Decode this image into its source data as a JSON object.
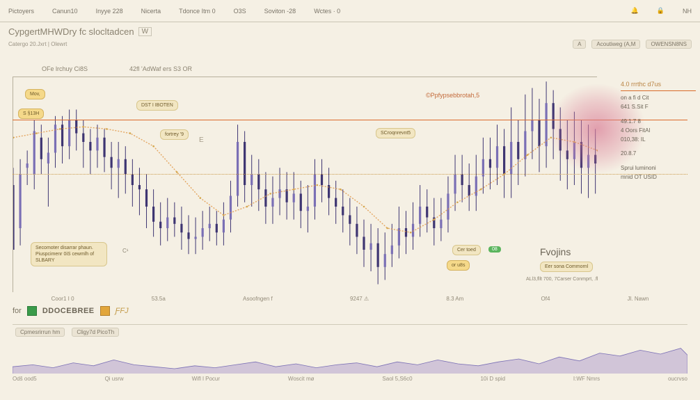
{
  "topbar": {
    "tabs": [
      "Pictoyers",
      "Canun10",
      "Inyye 228",
      "Nicerta",
      "Tdonce Itm 0",
      "O3S",
      "Soviton -28",
      "Wctes · 0"
    ],
    "right": "NH"
  },
  "title": {
    "main": "CypgertMHWDry fc slocltadcen",
    "tf": "W"
  },
  "subbar": {
    "left": "Catergo 20.Jxrt | Olewrt",
    "btn1": "Acoutiweg (A,M",
    "btn2": "OWENSN8NS",
    "tiny": "A"
  },
  "legend": {
    "a": "OFe lrchuy Ci8S",
    "b": "42fl 'AdWaf ers S3 OR"
  },
  "annotations": {
    "mov": "Mov,",
    "s": "S §13H",
    "dst": "DST I IBOTEN",
    "fort": "fortrey '9",
    "e": "E",
    "scrg": "SCroqnrevnt5",
    "pp": "©Ppfypsebbrotah,5",
    "note": "Secomoter disarrar\nphaun. Piuspcimenr\n0iS cewmlh of SLBARY",
    "c": "C¹",
    "cer": "Cer  toed",
    "or": "or  u8s",
    "fv": "Fvojins",
    "fvsub": "Eer sona Commornl",
    "fvnum": "ALl3,fllt  700, 7Carser  Conmprt, .fl"
  },
  "green": "08",
  "right_panel": {
    "hdr": "4.0 rrrthc d7us",
    "lines": [
      "on a fi  d Cit",
      "641  S.Sit  F",
      "49.1.7 8",
      "4 Oors  FitAl",
      "010,38: IL",
      "20.8.7",
      "Sprui luminoni",
      "mnid  OT USID"
    ]
  },
  "colors": {
    "bg": "#f5f0e4",
    "candle": "#3e3572",
    "candle2": "#7a6fb5",
    "line": "#e09440",
    "line2": "#d4a84e",
    "hline": "#db6a2a",
    "ellipse": "#d97c96",
    "area": "#b9a9d0",
    "grid": "#cbc5b2"
  },
  "chart": {
    "candles": [
      [
        0.0,
        0.5,
        0.2,
        0.58,
        0.42
      ],
      [
        0.012,
        0.3,
        0.55,
        0.62,
        0.22
      ],
      [
        0.024,
        0.58,
        0.6,
        0.66,
        0.5
      ],
      [
        0.036,
        0.55,
        0.75,
        0.8,
        0.48
      ],
      [
        0.048,
        0.72,
        0.62,
        0.78,
        0.55
      ],
      [
        0.06,
        0.6,
        0.65,
        0.72,
        0.4
      ],
      [
        0.072,
        0.65,
        0.78,
        0.82,
        0.58
      ],
      [
        0.084,
        0.78,
        0.68,
        0.82,
        0.6
      ],
      [
        0.096,
        0.68,
        0.8,
        0.85,
        0.62
      ],
      [
        0.108,
        0.8,
        0.74,
        0.85,
        0.66
      ],
      [
        0.12,
        0.74,
        0.7,
        0.8,
        0.58
      ],
      [
        0.132,
        0.7,
        0.66,
        0.76,
        0.55
      ],
      [
        0.144,
        0.66,
        0.72,
        0.78,
        0.58
      ],
      [
        0.156,
        0.72,
        0.63,
        0.76,
        0.56
      ],
      [
        0.168,
        0.63,
        0.58,
        0.7,
        0.48
      ],
      [
        0.18,
        0.58,
        0.62,
        0.7,
        0.44
      ],
      [
        0.192,
        0.62,
        0.55,
        0.68,
        0.46
      ],
      [
        0.204,
        0.55,
        0.5,
        0.62,
        0.4
      ],
      [
        0.216,
        0.5,
        0.48,
        0.58,
        0.36
      ],
      [
        0.228,
        0.48,
        0.4,
        0.55,
        0.3
      ],
      [
        0.24,
        0.4,
        0.33,
        0.48,
        0.26
      ],
      [
        0.252,
        0.33,
        0.3,
        0.42,
        0.22
      ],
      [
        0.264,
        0.3,
        0.35,
        0.44,
        0.24
      ],
      [
        0.276,
        0.35,
        0.32,
        0.42,
        0.26
      ],
      [
        0.288,
        0.32,
        0.28,
        0.4,
        0.2
      ],
      [
        0.3,
        0.28,
        0.25,
        0.36,
        0.18
      ],
      [
        0.312,
        0.25,
        0.26,
        0.35,
        0.18
      ],
      [
        0.324,
        0.26,
        0.3,
        0.38,
        0.2
      ],
      [
        0.336,
        0.3,
        0.32,
        0.4,
        0.24
      ],
      [
        0.348,
        0.32,
        0.28,
        0.38,
        0.22
      ],
      [
        0.36,
        0.28,
        0.34,
        0.42,
        0.22
      ],
      [
        0.372,
        0.34,
        0.45,
        0.52,
        0.28
      ],
      [
        0.384,
        0.45,
        0.7,
        0.78,
        0.4
      ],
      [
        0.396,
        0.7,
        0.5,
        0.75,
        0.42
      ],
      [
        0.408,
        0.5,
        0.55,
        0.64,
        0.4
      ],
      [
        0.42,
        0.55,
        0.48,
        0.62,
        0.38
      ],
      [
        0.432,
        0.48,
        0.4,
        0.56,
        0.32
      ],
      [
        0.444,
        0.4,
        0.44,
        0.54,
        0.32
      ],
      [
        0.456,
        0.44,
        0.48,
        0.58,
        0.36
      ],
      [
        0.468,
        0.48,
        0.42,
        0.56,
        0.34
      ],
      [
        0.48,
        0.42,
        0.46,
        0.56,
        0.34
      ],
      [
        0.492,
        0.46,
        0.38,
        0.52,
        0.3
      ],
      [
        0.504,
        0.38,
        0.4,
        0.5,
        0.28
      ],
      [
        0.516,
        0.4,
        0.55,
        0.62,
        0.34
      ],
      [
        0.528,
        0.55,
        0.5,
        0.62,
        0.42
      ],
      [
        0.54,
        0.5,
        0.44,
        0.58,
        0.36
      ],
      [
        0.552,
        0.44,
        0.4,
        0.52,
        0.32
      ],
      [
        0.564,
        0.4,
        0.36,
        0.48,
        0.28
      ],
      [
        0.576,
        0.36,
        0.32,
        0.44,
        0.22
      ],
      [
        0.588,
        0.32,
        0.26,
        0.4,
        0.18
      ],
      [
        0.6,
        0.26,
        0.2,
        0.34,
        0.12
      ],
      [
        0.612,
        0.2,
        0.23,
        0.32,
        0.1
      ],
      [
        0.624,
        0.23,
        0.12,
        0.3,
        0.04
      ],
      [
        0.636,
        0.12,
        0.18,
        0.28,
        0.06
      ],
      [
        0.648,
        0.18,
        0.22,
        0.32,
        0.12
      ],
      [
        0.66,
        0.22,
        0.3,
        0.4,
        0.16
      ],
      [
        0.672,
        0.3,
        0.26,
        0.38,
        0.18
      ],
      [
        0.684,
        0.26,
        0.32,
        0.42,
        0.2
      ],
      [
        0.696,
        0.32,
        0.4,
        0.5,
        0.26
      ],
      [
        0.708,
        0.4,
        0.35,
        0.48,
        0.28
      ],
      [
        0.72,
        0.35,
        0.3,
        0.44,
        0.22
      ],
      [
        0.732,
        0.3,
        0.34,
        0.44,
        0.24
      ],
      [
        0.744,
        0.34,
        0.46,
        0.54,
        0.28
      ],
      [
        0.756,
        0.46,
        0.55,
        0.64,
        0.38
      ],
      [
        0.768,
        0.55,
        0.5,
        0.64,
        0.42
      ],
      [
        0.78,
        0.5,
        0.45,
        0.6,
        0.38
      ],
      [
        0.792,
        0.45,
        0.54,
        0.64,
        0.38
      ],
      [
        0.804,
        0.54,
        0.62,
        0.72,
        0.46
      ],
      [
        0.816,
        0.62,
        0.58,
        0.72,
        0.48
      ],
      [
        0.828,
        0.58,
        0.68,
        0.78,
        0.5
      ],
      [
        0.84,
        0.68,
        0.55,
        0.76,
        0.44
      ],
      [
        0.852,
        0.55,
        0.7,
        0.86,
        0.44
      ],
      [
        0.864,
        0.7,
        0.62,
        0.8,
        0.5
      ],
      [
        0.876,
        0.62,
        0.75,
        0.92,
        0.54
      ],
      [
        0.888,
        0.75,
        0.8,
        0.95,
        0.62
      ],
      [
        0.9,
        0.8,
        0.68,
        0.9,
        0.56
      ],
      [
        0.912,
        0.68,
        0.88,
        0.98,
        0.58
      ],
      [
        0.924,
        0.88,
        0.76,
        0.94,
        0.62
      ],
      [
        0.936,
        0.76,
        0.66,
        0.86,
        0.52
      ],
      [
        0.948,
        0.66,
        0.62,
        0.8,
        0.48
      ],
      [
        0.96,
        0.62,
        0.7,
        0.84,
        0.5
      ],
      [
        0.972,
        0.7,
        0.58,
        0.8,
        0.46
      ],
      [
        0.984,
        0.58,
        0.64,
        0.78,
        0.44
      ],
      [
        0.996,
        0.64,
        0.6,
        0.76,
        0.46
      ]
    ],
    "smooth_line": [
      [
        0.0,
        0.72
      ],
      [
        0.04,
        0.74
      ],
      [
        0.08,
        0.76
      ],
      [
        0.12,
        0.77
      ],
      [
        0.16,
        0.76
      ],
      [
        0.2,
        0.74
      ],
      [
        0.24,
        0.68
      ],
      [
        0.28,
        0.56
      ],
      [
        0.32,
        0.44
      ],
      [
        0.36,
        0.36
      ],
      [
        0.4,
        0.4
      ],
      [
        0.44,
        0.46
      ],
      [
        0.48,
        0.48
      ],
      [
        0.52,
        0.5
      ],
      [
        0.56,
        0.48
      ],
      [
        0.6,
        0.4
      ],
      [
        0.64,
        0.3
      ],
      [
        0.68,
        0.28
      ],
      [
        0.72,
        0.34
      ],
      [
        0.76,
        0.42
      ],
      [
        0.8,
        0.48
      ],
      [
        0.84,
        0.55
      ],
      [
        0.88,
        0.64
      ],
      [
        0.92,
        0.72
      ],
      [
        0.96,
        0.7
      ],
      [
        1.0,
        0.66
      ]
    ],
    "hline1": 0.8,
    "hline2": 0.55,
    "base_area": [
      [
        0.0,
        0.14
      ],
      [
        0.03,
        0.18
      ],
      [
        0.06,
        0.12
      ],
      [
        0.09,
        0.22
      ],
      [
        0.12,
        0.16
      ],
      [
        0.15,
        0.28
      ],
      [
        0.18,
        0.18
      ],
      [
        0.21,
        0.14
      ],
      [
        0.24,
        0.1
      ],
      [
        0.27,
        0.16
      ],
      [
        0.3,
        0.12
      ],
      [
        0.33,
        0.18
      ],
      [
        0.36,
        0.24
      ],
      [
        0.39,
        0.14
      ],
      [
        0.42,
        0.2
      ],
      [
        0.45,
        0.12
      ],
      [
        0.48,
        0.18
      ],
      [
        0.51,
        0.22
      ],
      [
        0.54,
        0.14
      ],
      [
        0.57,
        0.24
      ],
      [
        0.6,
        0.18
      ],
      [
        0.63,
        0.28
      ],
      [
        0.66,
        0.2
      ],
      [
        0.69,
        0.16
      ],
      [
        0.72,
        0.24
      ],
      [
        0.75,
        0.3
      ],
      [
        0.78,
        0.2
      ],
      [
        0.81,
        0.34
      ],
      [
        0.84,
        0.26
      ],
      [
        0.87,
        0.42
      ],
      [
        0.9,
        0.36
      ],
      [
        0.93,
        0.48
      ],
      [
        0.96,
        0.4
      ],
      [
        0.99,
        0.52
      ],
      [
        1.0,
        0.38
      ]
    ]
  },
  "xaxis": [
    "Coor1 I 0",
    "53.5a",
    "Asoofngen f",
    "9247  ⚠",
    "8.3 Am",
    "Of4",
    "Jl. Nawn"
  ],
  "lower": {
    "labels": [
      "Cpmesrirrun hm",
      "Cligy7d PicoTh"
    ]
  },
  "lower_xaxis": [
    "Odš ood5",
    "Qi  usrw",
    "Wifl l Pocur",
    "Woscit mø",
    "Saol  5,S6c0",
    "10i D spid",
    "I:WF Nmrs",
    "oucrvso"
  ],
  "footer": {
    "pre": "for",
    "brand": "DDOCEBREE",
    "suf": "ƑFJ"
  }
}
